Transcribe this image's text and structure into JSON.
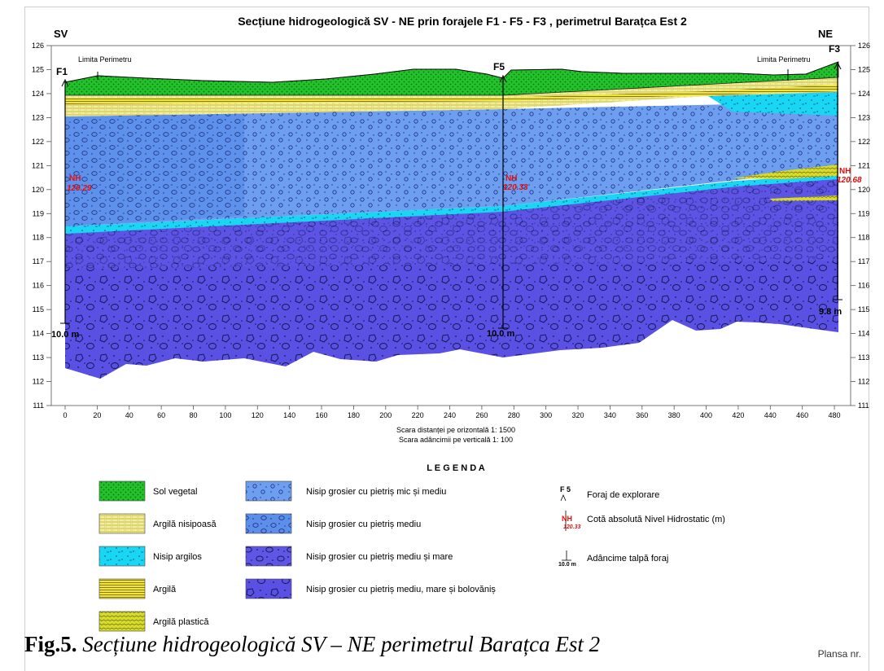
{
  "title": "Secțiune hidrogeologică SV - NE  prin forajele F1 - F5 - F3 , perimetrul Barațca Est 2",
  "directions": {
    "left": "SV",
    "right": "NE"
  },
  "boreholes": [
    {
      "name": "F1",
      "nh_label": "NH",
      "nh_value": "120.29",
      "depth_label": "10.0 m"
    },
    {
      "name": "F5",
      "nh_label": "NH",
      "nh_value": "120.33",
      "depth_label": "10.0 m"
    },
    {
      "name": "F3",
      "nh_label": "NH",
      "nh_value": "120.68",
      "depth_label": "9.8 m"
    }
  ],
  "limit_labels": [
    "Limita Perimetru",
    "Limita Perimetru"
  ],
  "axes": {
    "y_ticks": [
      "111",
      "112",
      "113",
      "114",
      "115",
      "116",
      "117",
      "118",
      "119",
      "120",
      "121",
      "122",
      "123",
      "124",
      "125",
      "126"
    ],
    "x_ticks": [
      "0",
      "20",
      "40",
      "60",
      "80",
      "100",
      "120",
      "140",
      "160",
      "180",
      "200",
      "220",
      "240",
      "260",
      "280",
      "300",
      "320",
      "340",
      "360",
      "380",
      "400",
      "420",
      "440",
      "460",
      "480"
    ],
    "x_range": [
      0,
      482
    ],
    "y_range": [
      111,
      126
    ]
  },
  "scales": {
    "horizontal": "Scara distanței pe orizontală 1: 1500",
    "vertical": "Scara adâncimii pe verticală 1: 100"
  },
  "legend": {
    "title": "L E G E N D A",
    "layers": [
      {
        "label": "Sol vegetal",
        "color": "#22c22a"
      },
      {
        "label": "Argilă nisipoasă",
        "color": "#f2ef9a"
      },
      {
        "label": "Nisip argilos",
        "color": "#1ad6f5"
      },
      {
        "label": "Argilă",
        "color": "#f0e53c"
      },
      {
        "label": "Argilă plastică",
        "color": "#d6da2a"
      },
      {
        "label": "Nisip grosier cu pietriș mic și mediu",
        "color": "#6d9eef"
      },
      {
        "label": "Nisip grosier cu pietriș mediu",
        "color": "#5b8fea"
      },
      {
        "label": "Nisip grosier cu pietriș mediu și mare",
        "color": "#5f56e6"
      },
      {
        "label": "Nisip grosier cu pietriș mediu, mare și bolovăniș",
        "color": "#5a50e4"
      }
    ],
    "symbols": [
      {
        "symbol": "F 5",
        "label": "Foraj de explorare"
      },
      {
        "symbol": "NH",
        "value": "120.33",
        "label": "Cotă absolută Nivel Hidrostatic (m)"
      },
      {
        "symbol": "10.0 m",
        "label": "Adâncime talpă foraj"
      }
    ]
  },
  "caption": {
    "bold": "Fig.5.",
    "italic": " Secțiune hidrogeologică SV – NE perimetrul Barațca Est 2"
  },
  "plansa": "Plansa nr."
}
